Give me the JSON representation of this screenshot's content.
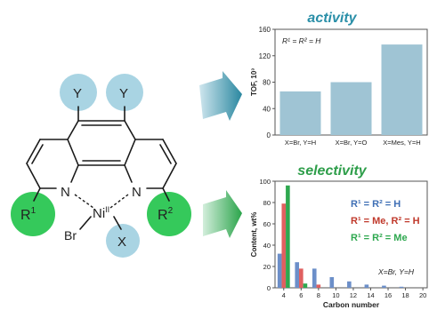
{
  "molecule": {
    "substituent_top_left": "Y",
    "substituent_top_right": "Y",
    "group_left": "R",
    "group_left_sup": "1",
    "group_right": "R",
    "group_right_sup": "2",
    "nitrogen_left": "N",
    "nitrogen_right": "N",
    "metal": "Ni",
    "metal_sup": "II",
    "halide": "Br",
    "ligand_x": "X",
    "colors": {
      "y_circle": "#a9d4e3",
      "r_circle": "#35c95b",
      "x_circle": "#a9d4e3"
    }
  },
  "arrows": {
    "top_color": "#2a87a0",
    "bottom_color": "#2aa44a"
  },
  "activity": {
    "title": "activity",
    "annotation": "R¹ = R² = H",
    "chart_data": {
      "type": "bar",
      "categories": [
        "X=Br, Y=H",
        "X=Br, Y=O",
        "X=Mes, Y=H"
      ],
      "values": [
        66,
        80,
        137
      ],
      "ylabel": "TOF, 10³",
      "ylim": [
        0,
        160
      ],
      "yticks": [
        0,
        40,
        80,
        120,
        160
      ],
      "bar_color": "#9fc4d4"
    }
  },
  "selectivity": {
    "title": "selectivity",
    "legend": [
      {
        "text": "R¹ = R² = H",
        "color": "#3f6fb5"
      },
      {
        "text": "R¹ = Me, R² = H",
        "color": "#c0392b"
      },
      {
        "text": "R¹ = R² = Me",
        "color": "#2ea84f"
      }
    ],
    "note": "X=Br, Y=H",
    "chart_data": {
      "type": "bar",
      "xlabel": "Carbon number",
      "ylabel": "Content, wt%",
      "ylim": [
        0,
        100
      ],
      "xticks": [
        4,
        6,
        8,
        10,
        12,
        14,
        16,
        18,
        20
      ],
      "yticks": [
        0,
        20,
        40,
        60,
        80,
        100
      ],
      "series": [
        {
          "color": "#6c8fc9",
          "points": [
            [
              4,
              32
            ],
            [
              6,
              24
            ],
            [
              8,
              18
            ],
            [
              10,
              10
            ],
            [
              12,
              6
            ],
            [
              14,
              3
            ],
            [
              16,
              2
            ],
            [
              18,
              1
            ]
          ]
        },
        {
          "color": "#e06060",
          "points": [
            [
              4,
              79
            ],
            [
              6,
              18
            ],
            [
              8,
              3
            ]
          ]
        },
        {
          "color": "#2ea84f",
          "points": [
            [
              4,
              96
            ],
            [
              6,
              4
            ]
          ]
        }
      ]
    }
  }
}
